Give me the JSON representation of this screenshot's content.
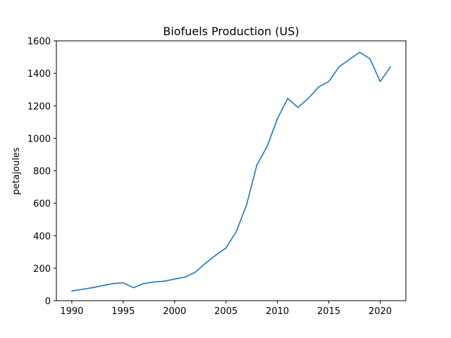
{
  "chart_data": {
    "type": "line",
    "title": "Biofuels Production (US)",
    "xlabel": "",
    "ylabel": "petajoules",
    "xlim": [
      1988.5,
      2022.5
    ],
    "ylim": [
      0,
      1600
    ],
    "xticks": [
      1990,
      1995,
      2000,
      2005,
      2010,
      2015,
      2020
    ],
    "yticks": [
      0,
      200,
      400,
      600,
      800,
      1000,
      1200,
      1400,
      1600
    ],
    "grid": false,
    "color": "#1f77b4",
    "series": [
      {
        "x": [
          1990,
          1991,
          1992,
          1993,
          1994,
          1995,
          1996,
          1997,
          1998,
          1999,
          2000,
          2001,
          2002,
          2003,
          2004,
          2005,
          2006,
          2007,
          2008,
          2009,
          2010,
          2011,
          2012,
          2013,
          2014,
          2015,
          2016,
          2017,
          2018,
          2019,
          2020,
          2021
        ],
        "values": [
          60,
          70,
          80,
          93,
          105,
          110,
          80,
          105,
          115,
          120,
          133,
          145,
          175,
          230,
          280,
          325,
          425,
          590,
          835,
          950,
          1120,
          1245,
          1190,
          1245,
          1315,
          1350,
          1440,
          1485,
          1530,
          1490,
          1350,
          1440
        ]
      }
    ]
  }
}
